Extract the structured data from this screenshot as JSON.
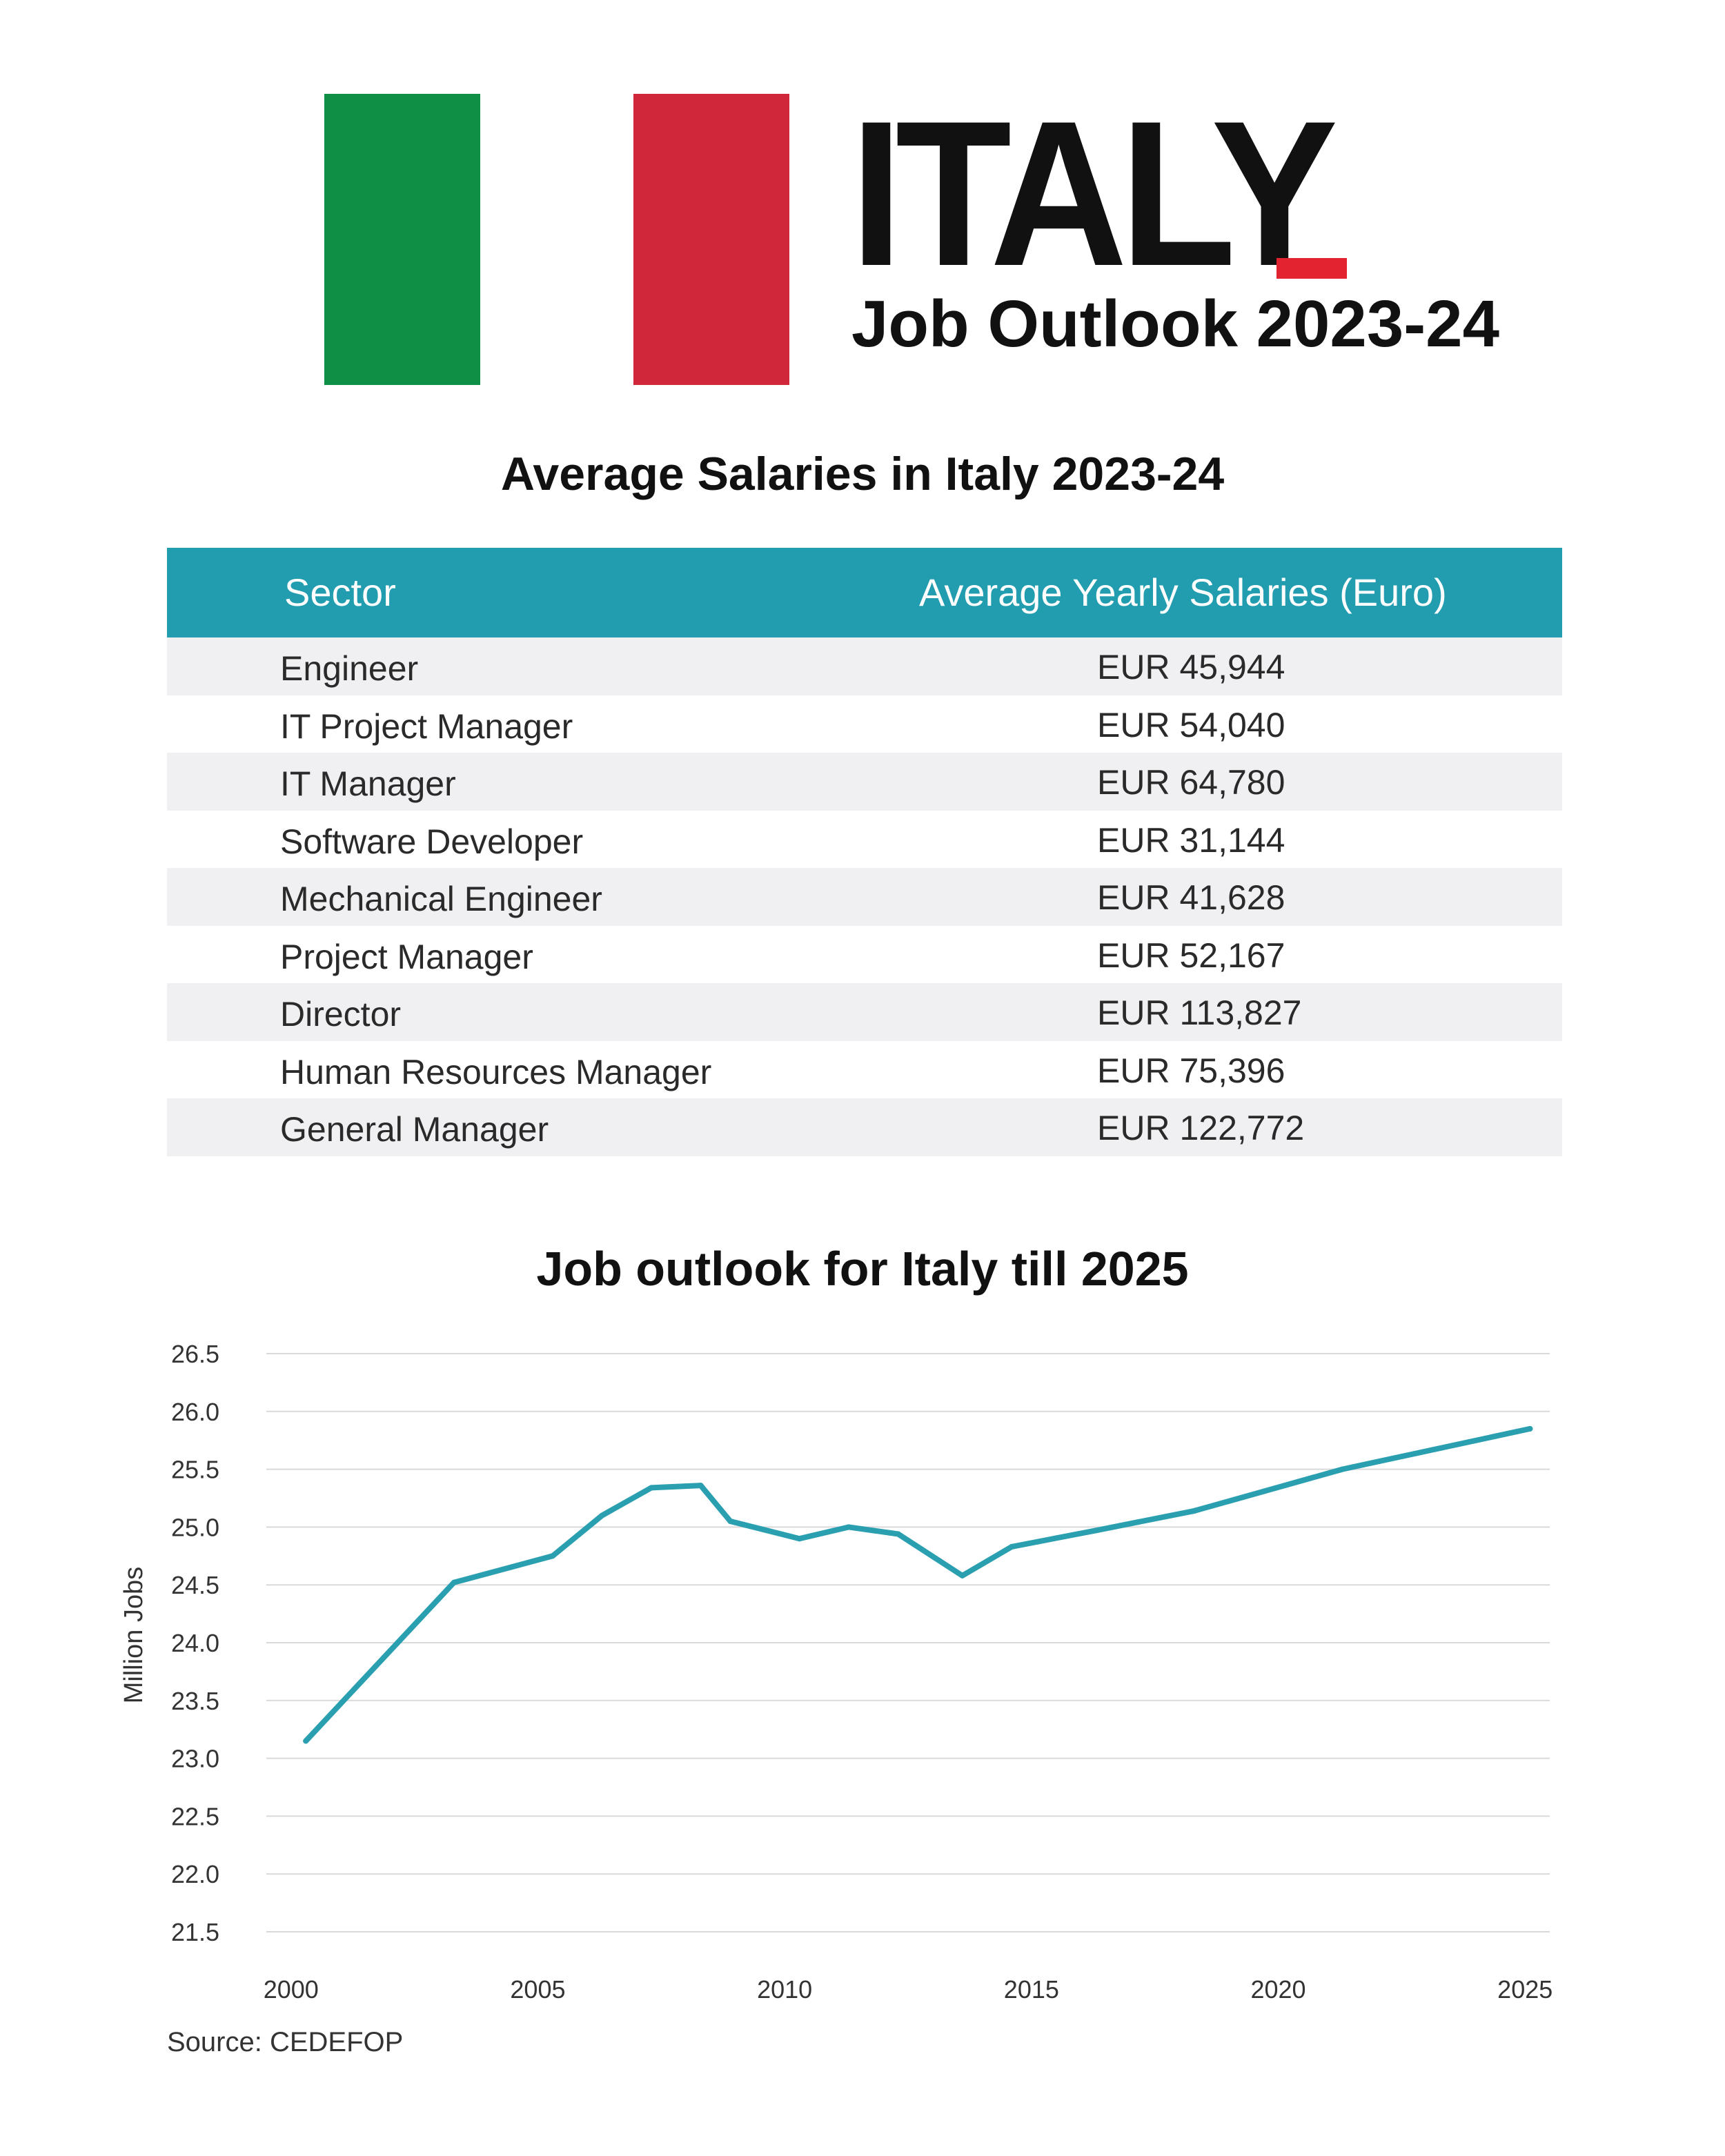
{
  "header": {
    "country": "ITALY",
    "subtitle": "Job Outlook 2023-24",
    "colors": {
      "green": "#0f8f45",
      "white": "#ffffff",
      "red": "#d0283a",
      "accent": "#e1242f"
    }
  },
  "table": {
    "title": "Average Salaries in Italy 2023-24",
    "headers": [
      "Sector",
      "Average Yearly Salaries (Euro)"
    ],
    "header_color": "#219daf",
    "rows": [
      [
        "Engineer",
        "EUR 45,944"
      ],
      [
        "IT Project Manager",
        "EUR 54,040"
      ],
      [
        "IT Manager",
        "EUR 64,780"
      ],
      [
        "Software Developer",
        "EUR 31,144"
      ],
      [
        "Mechanical Engineer",
        "EUR 41,628"
      ],
      [
        "Project Manager",
        "EUR 52,167"
      ],
      [
        "Director",
        "EUR 113,827"
      ],
      [
        "Human Resources Manager",
        "EUR 75,396"
      ],
      [
        "General Manager",
        "EUR 122,772"
      ]
    ]
  },
  "chart_data": {
    "type": "line",
    "title": "Job outlook for Italy till 2025",
    "xlabel": "",
    "ylabel": "Million Jobs",
    "x_ticks": [
      "2000",
      "2005",
      "2010",
      "2015",
      "2020",
      "2025"
    ],
    "y_ticks": [
      "21.5",
      "22.0",
      "22.5",
      "23.0",
      "23.5",
      "24.0",
      "24.5",
      "25.0",
      "25.5",
      "26.0",
      "26.5"
    ],
    "xlim": [
      1999.5,
      2025.5
    ],
    "ylim": [
      21.5,
      26.5
    ],
    "grid": true,
    "line_color": "#2a9fb0",
    "series": [
      {
        "name": "Million Jobs",
        "x": [
          2000.3,
          2003.3,
          2005.3,
          2006.3,
          2007.3,
          2008.3,
          2008.9,
          2010.3,
          2011.3,
          2012.3,
          2013.6,
          2014.6,
          2016.3,
          2018.3,
          2021.3,
          2025.1
        ],
        "values": [
          23.15,
          24.52,
          24.75,
          25.1,
          25.34,
          25.36,
          25.05,
          24.9,
          25.0,
          24.94,
          24.58,
          24.83,
          24.97,
          25.14,
          25.5,
          25.85
        ]
      }
    ]
  },
  "source": "Source: CEDEFOP"
}
